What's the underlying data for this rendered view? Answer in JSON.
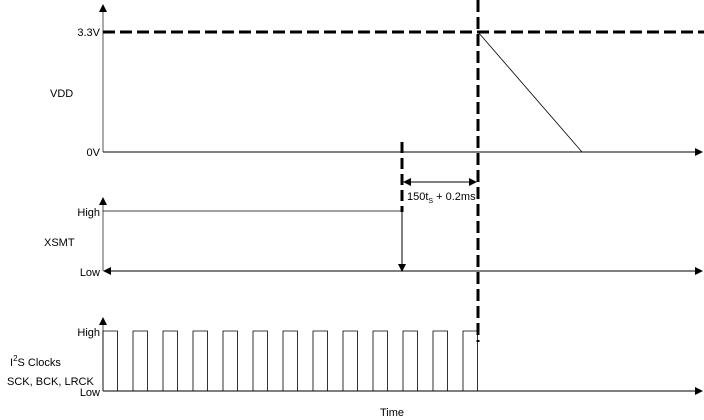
{
  "signals": {
    "vdd": {
      "name": "VDD",
      "high_label": "3.3V",
      "low_label": "0V"
    },
    "xsmt": {
      "name": "XSMT",
      "high_label": "High",
      "low_label": "Low"
    },
    "i2s": {
      "name_prefix": "I",
      "name_sup": "2",
      "name_suffix": "S Clocks",
      "name_line2": "SCK, BCK, LRCK",
      "high_label": "High",
      "low_label": "Low",
      "pulse_count": 13
    }
  },
  "timing": {
    "prefix": "150t",
    "sub": "S",
    "suffix": " + 0.2ms"
  },
  "x_axis_label": "Time"
}
